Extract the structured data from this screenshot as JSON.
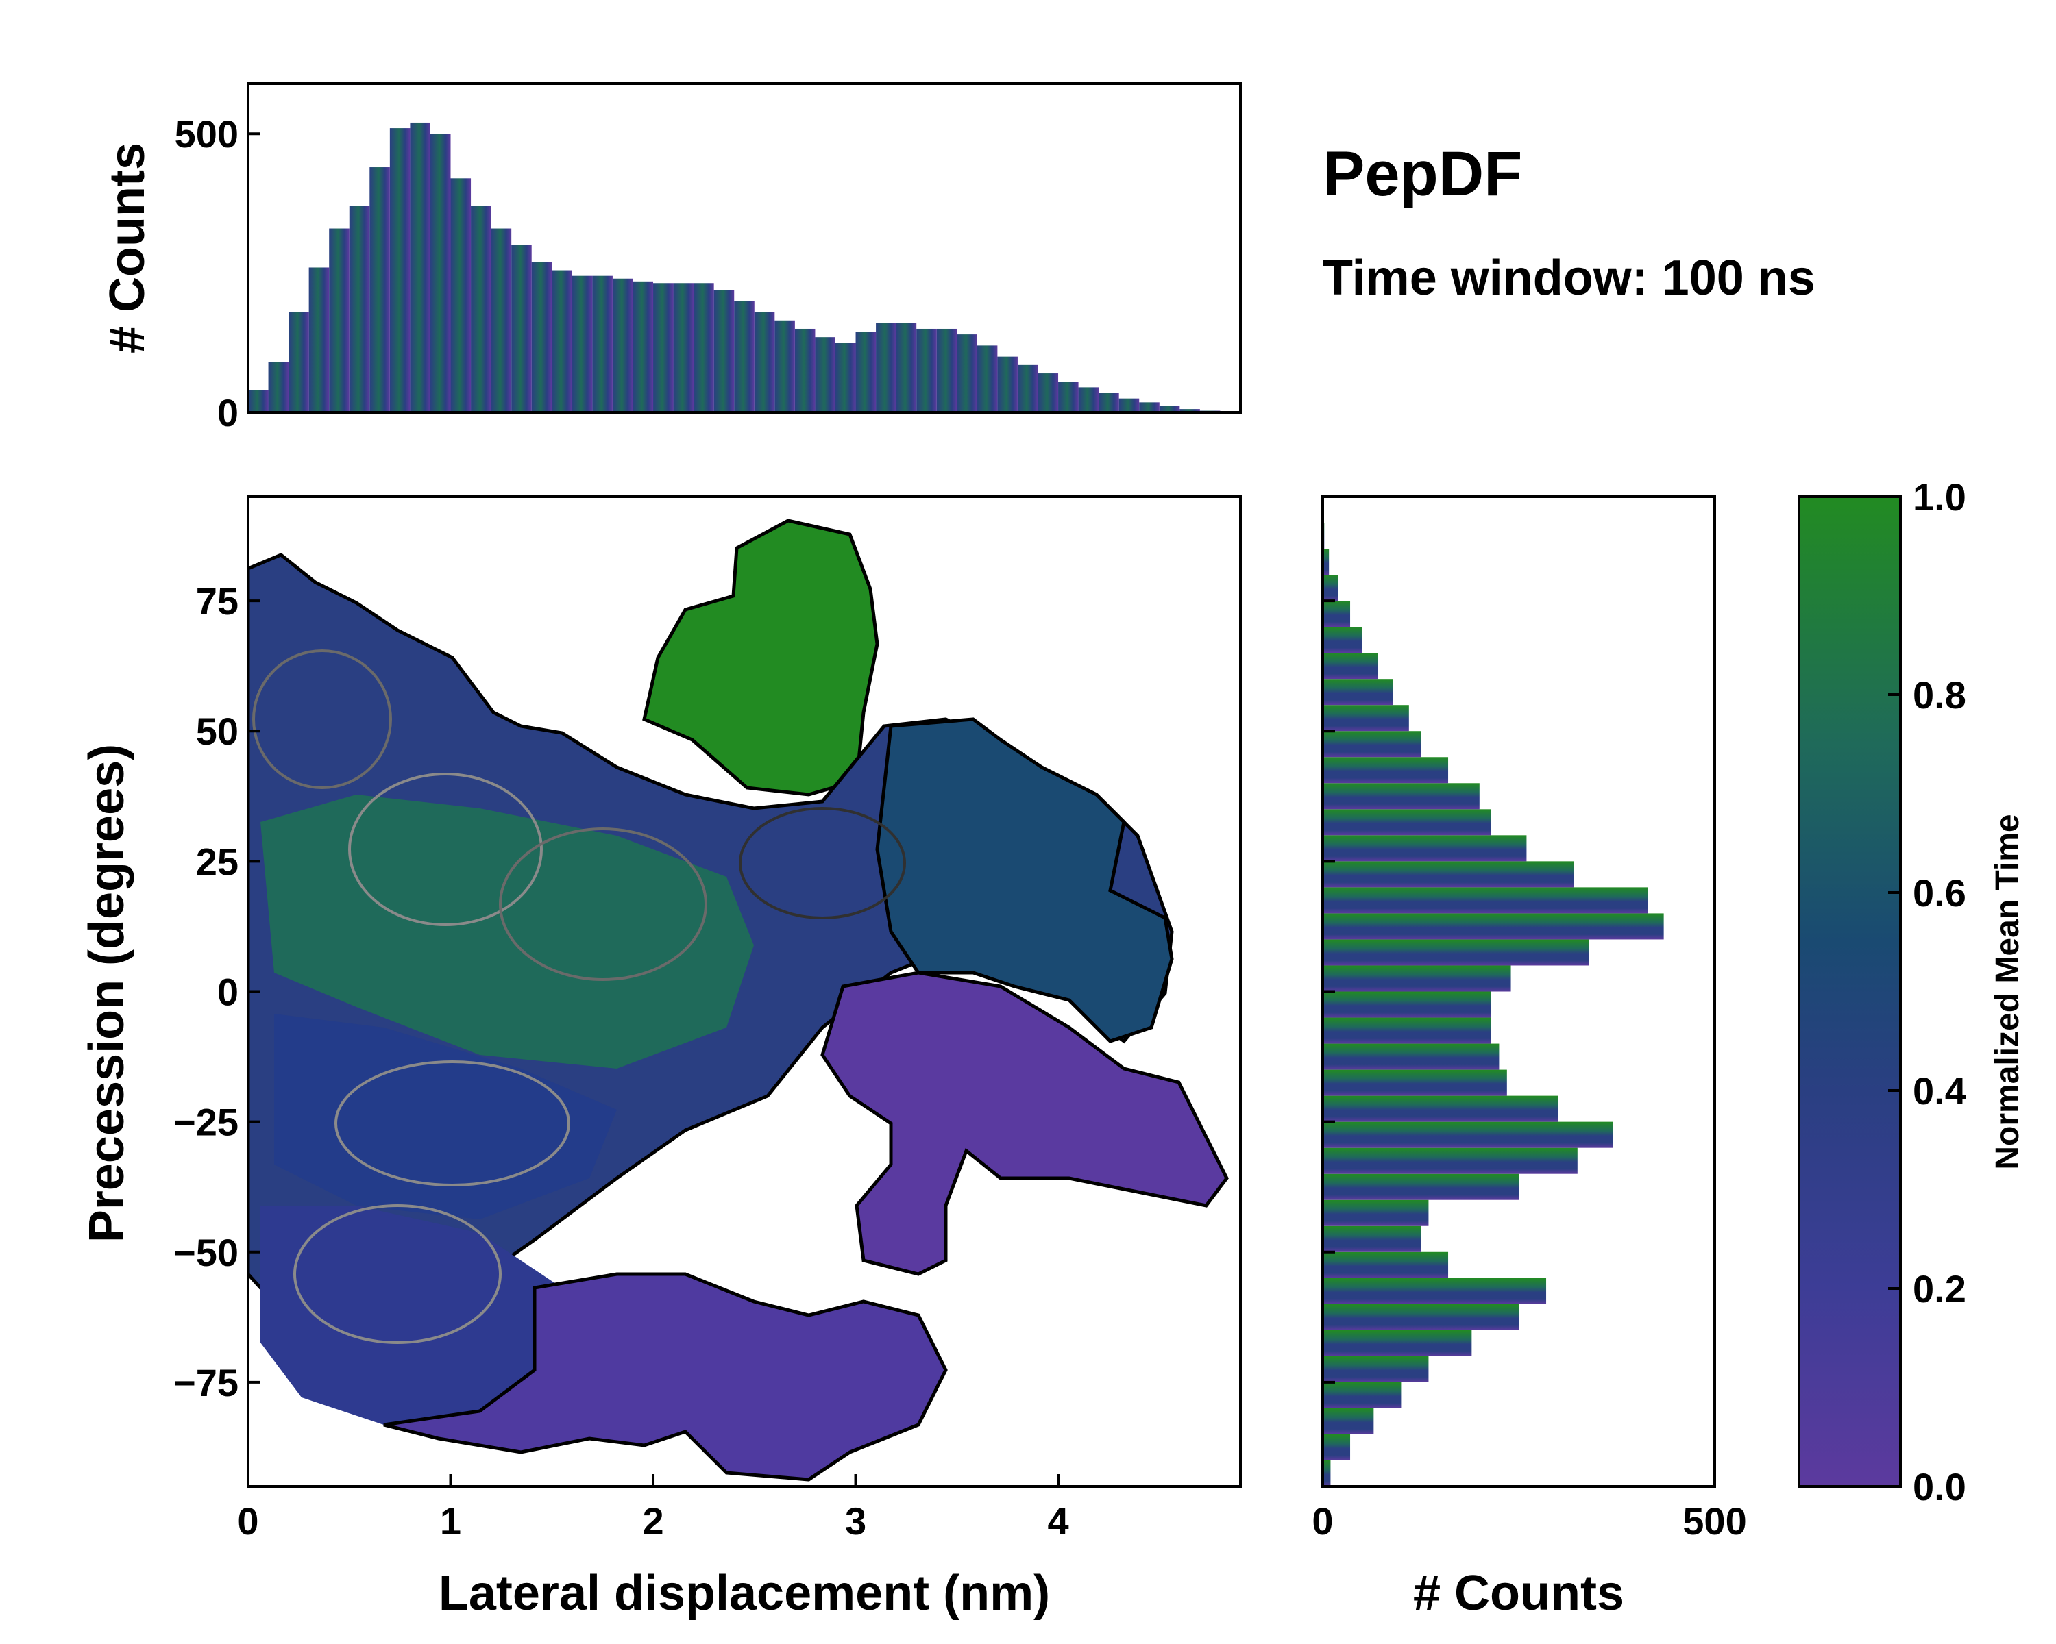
{
  "chart_data": [
    {
      "type": "bar",
      "panel": "top-marginal",
      "title": "",
      "xlabel": "",
      "ylabel": "# Counts",
      "xlim": [
        0,
        4.9
      ],
      "ylim": [
        0,
        590
      ],
      "yticks": [
        0,
        500
      ],
      "ytick_labels": [
        "0",
        "500"
      ],
      "bin_centers": [
        0.05,
        0.15,
        0.25,
        0.35,
        0.45,
        0.55,
        0.65,
        0.75,
        0.85,
        0.95,
        1.05,
        1.15,
        1.25,
        1.35,
        1.45,
        1.55,
        1.65,
        1.75,
        1.85,
        1.95,
        2.05,
        2.15,
        2.25,
        2.35,
        2.45,
        2.55,
        2.65,
        2.75,
        2.85,
        2.95,
        3.05,
        3.15,
        3.25,
        3.35,
        3.45,
        3.55,
        3.65,
        3.75,
        3.85,
        3.95,
        4.05,
        4.15,
        4.25,
        4.35,
        4.45,
        4.55,
        4.65,
        4.75
      ],
      "values": [
        40,
        90,
        180,
        260,
        330,
        370,
        440,
        510,
        520,
        500,
        420,
        370,
        330,
        300,
        270,
        255,
        245,
        245,
        240,
        235,
        232,
        232,
        232,
        220,
        200,
        180,
        165,
        150,
        135,
        125,
        145,
        160,
        160,
        150,
        150,
        140,
        120,
        100,
        85,
        70,
        55,
        45,
        35,
        25,
        18,
        12,
        6,
        3
      ],
      "color_by": "normalized mean time"
    },
    {
      "type": "heatmap",
      "panel": "joint",
      "title": "",
      "xlabel": "Lateral displacement (nm)",
      "ylabel": "Precession (degrees)",
      "xlim": [
        0,
        4.9
      ],
      "ylim": [
        -95,
        95
      ],
      "xticks": [
        0,
        1,
        2,
        3,
        4
      ],
      "xtick_labels": [
        "0",
        "1",
        "2",
        "3",
        "4"
      ],
      "yticks": [
        75,
        50,
        25,
        0,
        -25,
        -50,
        -75
      ],
      "ytick_labels": [
        "75",
        "50",
        "25",
        "0",
        "−25",
        "−50",
        "−75"
      ],
      "regions": [
        {
          "name": "green lobe",
          "x": 2.6,
          "y": 70,
          "value": 0.95
        },
        {
          "name": "main upper cluster",
          "x": 1.0,
          "y": 25,
          "value": 0.62
        },
        {
          "name": "upper-left cluster",
          "x": 0.4,
          "y": 55,
          "value": 0.45
        },
        {
          "name": "middle-right cluster",
          "x": 3.0,
          "y": 20,
          "value": 0.5
        },
        {
          "name": "middle cluster",
          "x": 1.5,
          "y": -25,
          "value": 0.35
        },
        {
          "name": "lower-left cluster",
          "x": 0.8,
          "y": -55,
          "value": 0.3
        },
        {
          "name": "lower-right lobe",
          "x": 3.8,
          "y": -25,
          "value": 0.12
        },
        {
          "name": "bottom lobe",
          "x": 2.5,
          "y": -75,
          "value": 0.1
        }
      ],
      "colorbar": {
        "label": "Normalized Mean Time",
        "range": [
          0.0,
          1.0
        ],
        "ticks": [
          0.0,
          0.2,
          0.4,
          0.6,
          0.8,
          1.0
        ],
        "tick_labels": [
          "0.0",
          "0.2",
          "0.4",
          "0.6",
          "0.8",
          "1.0"
        ],
        "colors": [
          "#5c3a9e",
          "#3d3d96",
          "#2a3f82",
          "#1a4a72",
          "#1f6a5a",
          "#228b22"
        ]
      }
    },
    {
      "type": "bar",
      "orientation": "horizontal",
      "panel": "right-marginal",
      "xlabel": "# Counts",
      "ylabel": "",
      "xlim": [
        0,
        500
      ],
      "ylim": [
        -95,
        95
      ],
      "xticks": [
        0,
        500
      ],
      "xtick_labels": [
        "0",
        "500"
      ],
      "bin_centers": [
        -92.5,
        -87.5,
        -82.5,
        -77.5,
        -72.5,
        -67.5,
        -62.5,
        -57.5,
        -52.5,
        -47.5,
        -42.5,
        -37.5,
        -32.5,
        -27.5,
        -22.5,
        -17.5,
        -12.5,
        -7.5,
        -2.5,
        2.5,
        7.5,
        12.5,
        17.5,
        22.5,
        27.5,
        32.5,
        37.5,
        42.5,
        47.5,
        52.5,
        57.5,
        62.5,
        67.5,
        72.5,
        77.5,
        82.5,
        87.5
      ],
      "values": [
        10,
        35,
        65,
        100,
        135,
        190,
        250,
        285,
        160,
        125,
        135,
        250,
        325,
        370,
        300,
        235,
        225,
        215,
        215,
        240,
        340,
        435,
        415,
        320,
        260,
        215,
        200,
        160,
        125,
        110,
        90,
        70,
        50,
        35,
        20,
        8,
        2
      ]
    }
  ],
  "title": {
    "main": "PepDF",
    "subtitle": "Time window: 100 ns"
  }
}
